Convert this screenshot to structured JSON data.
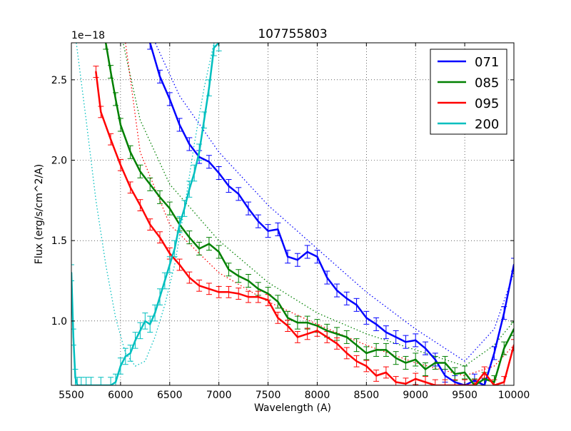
{
  "chart_data": {
    "type": "line",
    "title": "107755803",
    "xlabel": "Wavelength (A)",
    "ylabel": "Flux (erg/s/cm^2/A)",
    "y_offset_label": "1e−18",
    "xlim": [
      5500,
      10000
    ],
    "ylim": [
      0.6,
      2.73
    ],
    "xticks": [
      5500,
      6000,
      6500,
      7000,
      7500,
      8000,
      8500,
      9000,
      9500,
      10000
    ],
    "xtick_labels": [
      "5500",
      "6000",
      "6500",
      "7000",
      "7500",
      "8000",
      "8500",
      "9000",
      "9500",
      "10000"
    ],
    "yticks": [
      1.0,
      1.5,
      2.0,
      2.5
    ],
    "ytick_labels": [
      "1.0",
      "1.5",
      "2.0",
      "2.5"
    ],
    "grid": true,
    "legend_position": "top-right",
    "series": [
      {
        "name": "071",
        "color": "#0000ff",
        "x": [
          6300,
          6400,
          6500,
          6600,
          6700,
          6800,
          6900,
          7000,
          7100,
          7200,
          7300,
          7400,
          7500,
          7600,
          7700,
          7800,
          7900,
          8000,
          8100,
          8200,
          8300,
          8400,
          8500,
          8600,
          8700,
          8800,
          8900,
          9000,
          9100,
          9200,
          9300,
          9400,
          9500,
          9600,
          9700,
          9800,
          9900,
          10000
        ],
        "y": [
          2.73,
          2.52,
          2.38,
          2.22,
          2.1,
          2.02,
          1.99,
          1.92,
          1.84,
          1.79,
          1.7,
          1.62,
          1.56,
          1.57,
          1.4,
          1.38,
          1.43,
          1.4,
          1.27,
          1.19,
          1.14,
          1.1,
          1.02,
          0.98,
          0.93,
          0.9,
          0.87,
          0.88,
          0.83,
          0.76,
          0.66,
          0.62,
          0.6,
          0.63,
          0.6,
          0.8,
          1.05,
          1.35
        ],
        "err": 0.04,
        "model_x": [
          6300,
          6600,
          7000,
          7500,
          8000,
          8500,
          9000,
          9500,
          9800,
          10000
        ],
        "model_y": [
          2.8,
          2.4,
          2.05,
          1.72,
          1.45,
          1.18,
          0.95,
          0.75,
          0.95,
          1.3
        ]
      },
      {
        "name": "085",
        "color": "#008000",
        "x": [
          5850,
          5900,
          5950,
          6000,
          6100,
          6200,
          6300,
          6400,
          6500,
          6600,
          6700,
          6800,
          6900,
          7000,
          7100,
          7200,
          7300,
          7400,
          7500,
          7600,
          7700,
          7800,
          7900,
          8000,
          8100,
          8200,
          8300,
          8400,
          8500,
          8600,
          8700,
          8800,
          8900,
          9000,
          9100,
          9200,
          9300,
          9400,
          9500,
          9600,
          9700,
          9800,
          9900,
          10000
        ],
        "y": [
          2.73,
          2.55,
          2.38,
          2.22,
          2.05,
          1.93,
          1.85,
          1.77,
          1.7,
          1.6,
          1.52,
          1.45,
          1.48,
          1.43,
          1.32,
          1.28,
          1.25,
          1.2,
          1.17,
          1.12,
          1.02,
          0.99,
          0.99,
          0.97,
          0.94,
          0.92,
          0.9,
          0.85,
          0.8,
          0.82,
          0.82,
          0.77,
          0.74,
          0.76,
          0.7,
          0.74,
          0.74,
          0.67,
          0.68,
          0.6,
          0.64,
          0.62,
          0.83,
          0.95
        ],
        "err": 0.04,
        "model_x": [
          6000,
          6200,
          6500,
          7000,
          7500,
          8000,
          8500,
          9000,
          9500,
          9800,
          10000
        ],
        "model_y": [
          2.8,
          2.25,
          1.85,
          1.5,
          1.24,
          1.05,
          0.92,
          0.82,
          0.72,
          0.85,
          1.0
        ]
      },
      {
        "name": "095",
        "color": "#ff0000",
        "x": [
          5750,
          5800,
          5900,
          6000,
          6100,
          6200,
          6300,
          6400,
          6500,
          6600,
          6700,
          6800,
          6900,
          7000,
          7100,
          7200,
          7300,
          7400,
          7500,
          7600,
          7700,
          7800,
          7900,
          8000,
          8100,
          8200,
          8300,
          8400,
          8500,
          8600,
          8700,
          8800,
          8900,
          9000,
          9100,
          9200,
          9300,
          9400,
          9500,
          9600,
          9700,
          9800,
          9900,
          10000
        ],
        "y": [
          2.55,
          2.3,
          2.13,
          1.97,
          1.83,
          1.72,
          1.6,
          1.52,
          1.42,
          1.35,
          1.27,
          1.22,
          1.2,
          1.18,
          1.18,
          1.17,
          1.15,
          1.15,
          1.13,
          1.02,
          0.97,
          0.9,
          0.92,
          0.94,
          0.9,
          0.86,
          0.8,
          0.75,
          0.72,
          0.66,
          0.68,
          0.62,
          0.61,
          0.64,
          0.62,
          0.6,
          0.6,
          0.6,
          0.6,
          0.6,
          0.68,
          0.6,
          0.62,
          0.85
        ],
        "err": 0.035,
        "model_x": [
          6050,
          6200,
          6500,
          7000,
          7500,
          8000,
          8500,
          9000,
          9500,
          9800,
          10000
        ],
        "model_y": [
          2.73,
          2.05,
          1.6,
          1.3,
          1.12,
          0.98,
          0.85,
          0.74,
          0.66,
          0.72,
          0.85
        ]
      },
      {
        "name": "200",
        "color": "#00bfbf",
        "x": [
          5500,
          5520,
          5540,
          5560,
          5600,
          5650,
          5700,
          5800,
          5900,
          5950,
          6000,
          6050,
          6100,
          6150,
          6200,
          6250,
          6300,
          6350,
          6400,
          6450,
          6500,
          6550,
          6600,
          6650,
          6700,
          6750,
          6800,
          6850,
          6900,
          6950,
          7000
        ],
        "y": [
          1.3,
          0.9,
          0.65,
          0.6,
          0.6,
          0.6,
          0.6,
          0.6,
          0.6,
          0.62,
          0.72,
          0.78,
          0.8,
          0.88,
          0.94,
          1.0,
          0.98,
          1.05,
          1.15,
          1.25,
          1.35,
          1.45,
          1.6,
          1.7,
          1.82,
          1.92,
          2.05,
          2.25,
          2.45,
          2.7,
          2.73
        ],
        "err": 0.05,
        "model_x": [
          5550,
          5650,
          5750,
          5850,
          5950,
          6050,
          6150,
          6250,
          6350,
          6450,
          6550,
          6650,
          6750,
          6850,
          6950
        ],
        "model_y": [
          2.73,
          2.25,
          1.75,
          1.35,
          1.02,
          0.8,
          0.72,
          0.75,
          0.9,
          1.1,
          1.35,
          1.7,
          2.1,
          2.45,
          2.73
        ]
      }
    ]
  }
}
